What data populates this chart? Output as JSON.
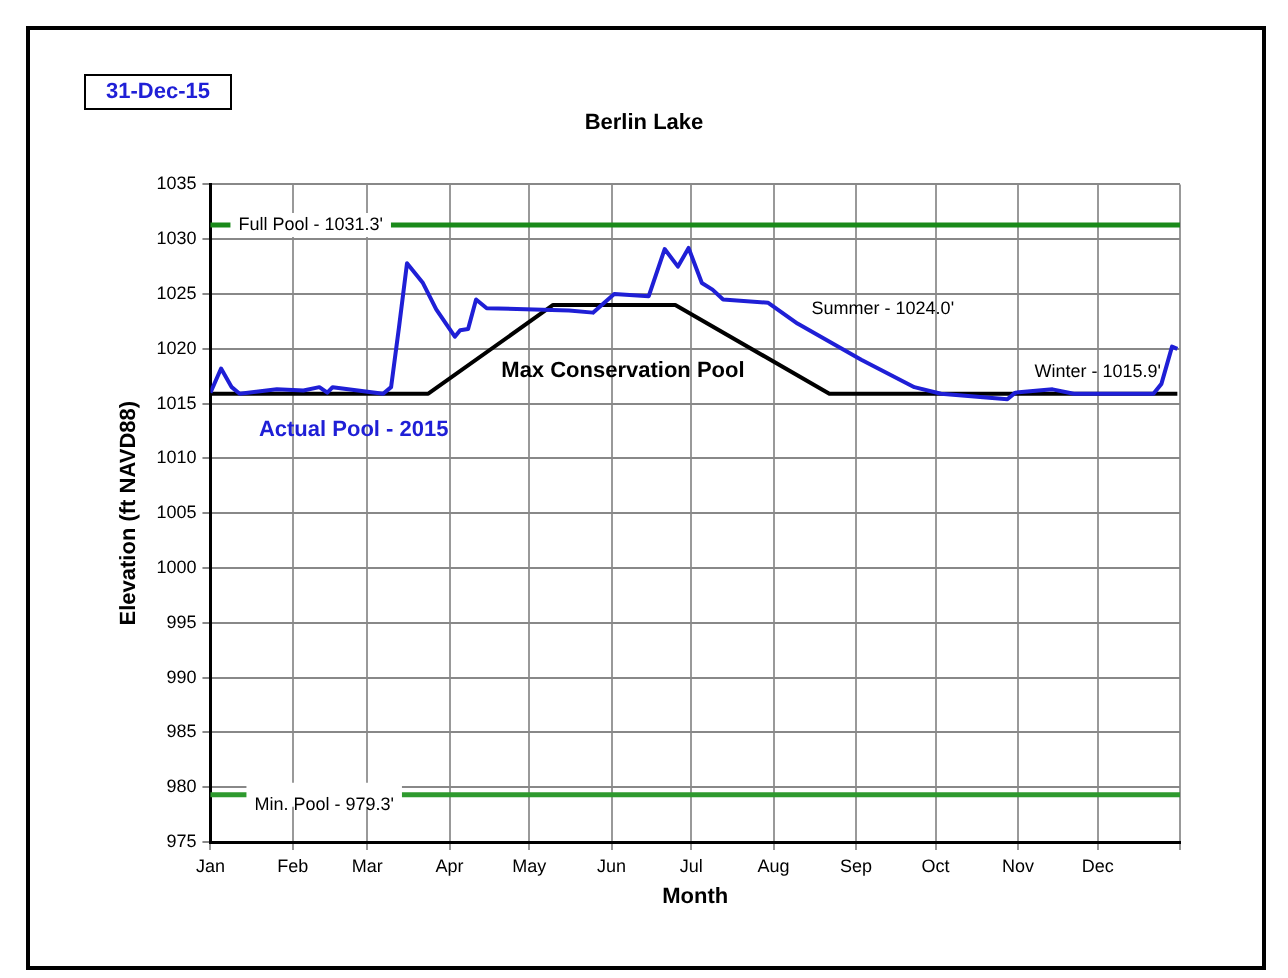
{
  "chart_data": {
    "type": "line",
    "title": "Berlin Lake",
    "xlabel": "Month",
    "ylabel": "Elevation (ft NAVD88)",
    "annotations": [
      "31-Dec-15",
      "Summer - 1024.0'",
      "Winter - 1015.9'"
    ],
    "series": [
      {
        "name": "Actual Pool - 2015",
        "color": "#1f1fd6",
        "x": [
          "2015-01-01",
          "2015-01-05",
          "2015-01-09",
          "2015-01-12",
          "2015-01-26",
          "2015-02-05",
          "2015-02-11",
          "2015-02-14",
          "2015-02-16",
          "2015-03-07",
          "2015-03-10",
          "2015-03-13",
          "2015-03-16",
          "2015-03-22",
          "2015-03-27",
          "2015-04-03",
          "2015-04-05",
          "2015-04-08",
          "2015-04-11",
          "2015-04-15",
          "2015-05-16",
          "2015-05-25",
          "2015-06-02",
          "2015-06-15",
          "2015-06-21",
          "2015-06-26",
          "2015-06-30",
          "2015-07-05",
          "2015-07-09",
          "2015-07-13",
          "2015-07-30",
          "2015-08-10",
          "2015-09-03",
          "2015-09-23",
          "2015-10-03",
          "2015-10-28",
          "2015-10-31",
          "2015-11-14",
          "2015-11-22",
          "2015-12-22",
          "2015-12-25",
          "2015-12-29",
          "2015-12-31"
        ],
        "values": [
          1016,
          1018.2,
          1016.5,
          1015.9,
          1016.3,
          1016.2,
          1016.5,
          1016,
          1016.5,
          1015.9,
          1016.5,
          1022,
          1027.8,
          1026,
          1023.6,
          1021.1,
          1021.7,
          1021.8,
          1024.5,
          1023.7,
          1023.5,
          1023.3,
          1025,
          1024.8,
          1029.1,
          1027.5,
          1029.2,
          1026,
          1025.4,
          1024.5,
          1024.2,
          1022.3,
          1019,
          1016.5,
          1015.9,
          1015.4,
          1016,
          1016.3,
          1015.9,
          1015.9,
          1016.8,
          1020.2,
          1020
        ]
      },
      {
        "name": "Max Conservation Pool",
        "color": "#000000",
        "x": [
          "2015-01-01",
          "2015-03-24",
          "2015-05-10",
          "2015-06-25",
          "2015-08-22",
          "2015-12-31"
        ],
        "values": [
          1015.9,
          1015.9,
          1024,
          1024,
          1015.9,
          1015.9
        ]
      }
    ],
    "ref_lines": [
      {
        "axis": "y",
        "value": 1031.3,
        "label": "Full Pool - 1031.3'",
        "color": "#1a8a1a"
      },
      {
        "axis": "y",
        "value": 979.3,
        "label": "Min. Pool - 979.3'",
        "color": "#2e9a2e"
      }
    ],
    "xlim": [
      "2015-01-01",
      "2016-01-01"
    ],
    "xticks": [
      {
        "value": "2015-01-01",
        "label": "Jan"
      },
      {
        "value": "2015-02-01",
        "label": "Feb"
      },
      {
        "value": "2015-03-01",
        "label": "Mar"
      },
      {
        "value": "2015-04-01",
        "label": "Apr"
      },
      {
        "value": "2015-05-01",
        "label": "May"
      },
      {
        "value": "2015-06-01",
        "label": "Jun"
      },
      {
        "value": "2015-07-01",
        "label": "Jul"
      },
      {
        "value": "2015-08-01",
        "label": "Aug"
      },
      {
        "value": "2015-09-01",
        "label": "Sep"
      },
      {
        "value": "2015-10-01",
        "label": "Oct"
      },
      {
        "value": "2015-11-01",
        "label": "Nov"
      },
      {
        "value": "2015-12-01",
        "label": "Dec"
      },
      {
        "value": "2016-01-01",
        "label": null
      }
    ],
    "ylim": [
      975,
      1035
    ],
    "yticks": [
      975,
      980,
      985,
      990,
      995,
      1000,
      1005,
      1010,
      1015,
      1020,
      1025,
      1030,
      1035
    ],
    "grid": true,
    "legend": false,
    "marker": "none",
    "line_style": "solid"
  }
}
